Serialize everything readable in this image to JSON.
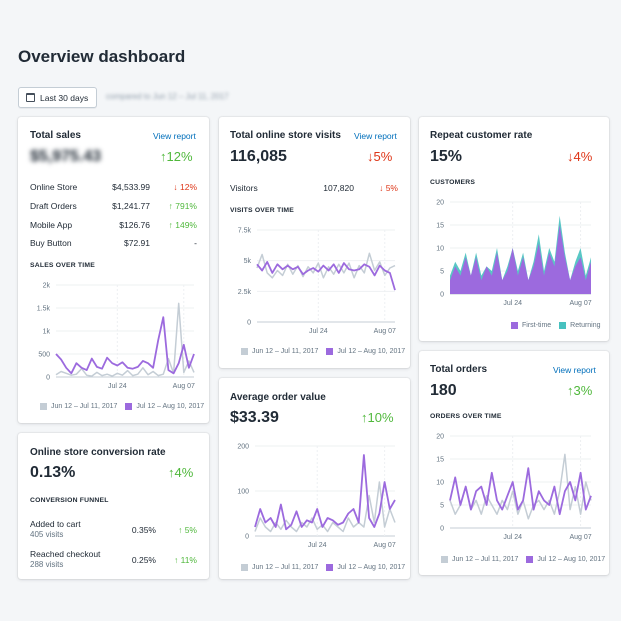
{
  "page": {
    "title": "Overview dashboard"
  },
  "date_filter": {
    "label": "Last 30 days",
    "compare_text": "compared to Jun 12 – Jul 11, 2017"
  },
  "colors": {
    "current": "#9c6ade",
    "previous": "#c4cdd5",
    "returning": "#47c1bf",
    "up": "#50b83c",
    "down": "#de3618",
    "link": "#006fbb"
  },
  "legend": {
    "prev": "Jun 12 – Jul 11, 2017",
    "curr": "Jul 12 – Aug 10, 2017"
  },
  "total_sales": {
    "title": "Total sales",
    "view_report": "View report",
    "value": "$5,975.43",
    "change": "12%",
    "rows": [
      {
        "label": "Online Store",
        "value": "$4,533.99",
        "change": "12%",
        "dir": "down"
      },
      {
        "label": "Draft Orders",
        "value": "$1,241.77",
        "change": "791%",
        "dir": "up"
      },
      {
        "label": "Mobile App",
        "value": "$126.76",
        "change": "149%",
        "dir": "up"
      },
      {
        "label": "Buy Button",
        "value": "$72.91",
        "change": "-",
        "dir": "none"
      }
    ],
    "chart_label": "SALES OVER TIME"
  },
  "visits": {
    "title": "Total online store visits",
    "view_report": "View report",
    "value": "116,085",
    "change": "5%",
    "row": {
      "label": "Visitors",
      "value": "107,820",
      "change": "5%"
    },
    "chart_label": "VISITS OVER TIME"
  },
  "repeat": {
    "title": "Repeat customer rate",
    "value": "15%",
    "change": "4%",
    "chart_label": "CUSTOMERS",
    "legend_first": "First-time",
    "legend_returning": "Returning"
  },
  "conversion": {
    "title": "Online store conversion rate",
    "value": "0.13%",
    "change": "4%",
    "funnel_label": "CONVERSION FUNNEL",
    "rows": [
      {
        "label": "Added to cart",
        "sub": "405 visits",
        "value": "0.35%",
        "change": "5%"
      },
      {
        "label": "Reached checkout",
        "sub": "288 visits",
        "value": "0.25%",
        "change": "11%"
      }
    ]
  },
  "aov": {
    "title": "Average order value",
    "value": "$33.39",
    "change": "10%"
  },
  "orders": {
    "title": "Total orders",
    "view_report": "View report",
    "value": "180",
    "change": "3%",
    "chart_label": "ORDERS OVER TIME"
  },
  "chart_data": [
    {
      "id": "sales",
      "type": "line",
      "title": "SALES OVER TIME",
      "x_ticks": [
        "Jul 24",
        "Aug 07"
      ],
      "y_ticks": [
        "0",
        "500",
        "1k",
        "1.5k",
        "2k"
      ],
      "ylim": [
        0,
        2000
      ],
      "series": [
        {
          "name": "Jun 12 – Jul 11, 2017",
          "values": [
            50,
            120,
            80,
            40,
            60,
            180,
            40,
            20,
            100,
            30,
            60,
            20,
            80,
            40,
            140,
            30,
            60,
            200,
            50,
            120,
            30,
            60,
            400,
            80,
            1600,
            100,
            350,
            100
          ]
        },
        {
          "name": "Jul 12 – Aug 10, 2017",
          "values": [
            500,
            380,
            200,
            80,
            300,
            200,
            150,
            400,
            220,
            180,
            420,
            300,
            250,
            320,
            200,
            180,
            220,
            350,
            300,
            200,
            800,
            1300,
            150,
            80,
            300,
            700,
            200,
            500
          ]
        }
      ]
    },
    {
      "id": "visits",
      "type": "line",
      "title": "VISITS OVER TIME",
      "x_ticks": [
        "Jul 24",
        "Aug 07"
      ],
      "y_ticks": [
        "0",
        "2.5k",
        "5k",
        "7.5k"
      ],
      "ylim": [
        0,
        7500
      ],
      "series": [
        {
          "name": "Jun 12 – Jul 11, 2017",
          "values": [
            4400,
            5500,
            4000,
            3600,
            4200,
            3800,
            4700,
            3900,
            4600,
            3700,
            4500,
            4000,
            4800,
            3600,
            4500,
            3900,
            4700,
            4000,
            4800,
            3600,
            4600,
            4000,
            5600,
            4200,
            4900,
            3800,
            4400,
            4600
          ]
        },
        {
          "name": "Jul 12 – Aug 10, 2017",
          "values": [
            4700,
            4200,
            4900,
            4000,
            4700,
            4300,
            4600,
            4300,
            4500,
            3900,
            4200,
            4400,
            4100,
            4600,
            4200,
            4700,
            4000,
            4800,
            4300,
            4200,
            4300,
            4700,
            4500,
            3800,
            4600,
            4200,
            4000,
            2600
          ]
        }
      ]
    },
    {
      "id": "customers",
      "type": "area",
      "title": "CUSTOMERS",
      "x_ticks": [
        "Jul 24",
        "Aug 07"
      ],
      "y_ticks": [
        "0",
        "5",
        "10",
        "15",
        "20"
      ],
      "ylim": [
        0,
        20
      ],
      "series": [
        {
          "name": "First-time",
          "values": [
            3,
            6,
            4,
            8,
            4,
            8,
            3,
            6,
            4,
            9,
            3,
            5,
            10,
            4,
            8,
            3,
            6,
            11,
            4,
            9,
            6,
            15,
            8,
            3,
            6,
            8,
            3,
            7
          ]
        },
        {
          "name": "Returning",
          "values": [
            1,
            1,
            1,
            1,
            0,
            1,
            1,
            0,
            1,
            1,
            0,
            1,
            0,
            1,
            1,
            0,
            1,
            2,
            1,
            1,
            1,
            2,
            1,
            0,
            1,
            2,
            1,
            1
          ]
        }
      ]
    },
    {
      "id": "aov",
      "type": "line",
      "title": "Average order value",
      "x_ticks": [
        "Jul 24",
        "Aug 07"
      ],
      "y_ticks": [
        "0",
        "100",
        "200"
      ],
      "ylim": [
        0,
        200
      ],
      "series": [
        {
          "name": "Jun 12 – Jul 11, 2017",
          "values": [
            10,
            40,
            20,
            10,
            30,
            15,
            35,
            20,
            10,
            30,
            20,
            40,
            15,
            25,
            10,
            30,
            20,
            10,
            40,
            20,
            30,
            20,
            90,
            30,
            120,
            20,
            60,
            30
          ]
        },
        {
          "name": "Jul 12 – Aug 10, 2017",
          "values": [
            20,
            60,
            30,
            40,
            20,
            70,
            15,
            25,
            55,
            20,
            35,
            30,
            60,
            20,
            40,
            35,
            25,
            30,
            50,
            60,
            30,
            180,
            40,
            20,
            50,
            120,
            60,
            80
          ]
        }
      ]
    },
    {
      "id": "orders",
      "type": "line",
      "title": "ORDERS OVER TIME",
      "x_ticks": [
        "Jul 24",
        "Aug 07"
      ],
      "y_ticks": [
        "0",
        "5",
        "10",
        "15",
        "20"
      ],
      "ylim": [
        0,
        20
      ],
      "series": [
        {
          "name": "Jun 12 – Jul 11, 2017",
          "values": [
            6,
            3,
            5,
            9,
            4,
            6,
            3,
            7,
            5,
            3,
            6,
            4,
            8,
            3,
            6,
            2,
            5,
            6,
            4,
            6,
            3,
            8,
            16,
            4,
            9,
            3,
            10,
            6
          ]
        },
        {
          "name": "Jul 12 – Aug 10, 2017",
          "values": [
            6,
            11,
            5,
            9,
            4,
            8,
            9,
            5,
            12,
            6,
            4,
            7,
            10,
            4,
            6,
            13,
            4,
            8,
            6,
            5,
            9,
            3,
            8,
            10,
            6,
            12,
            4,
            7
          ]
        }
      ]
    }
  ]
}
